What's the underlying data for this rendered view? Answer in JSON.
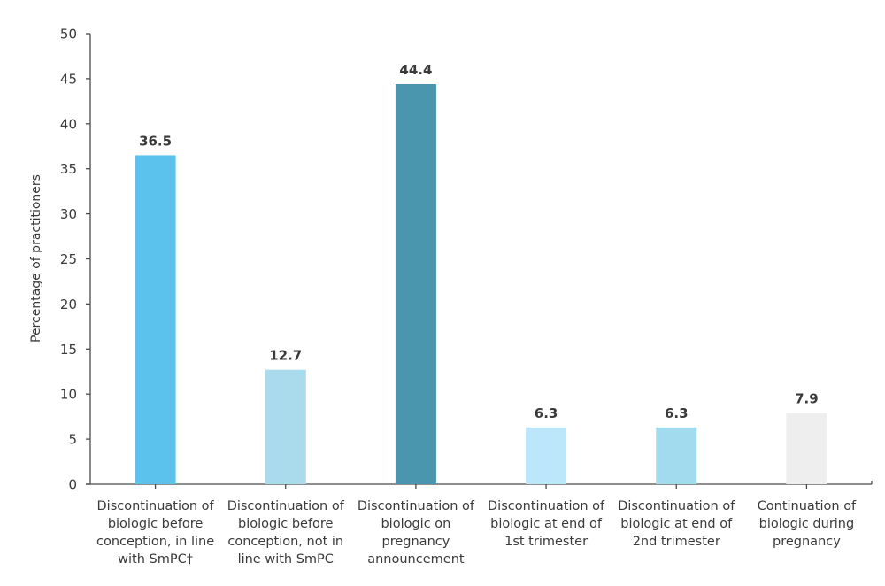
{
  "chart_data": {
    "type": "bar",
    "title": "",
    "xlabel": "",
    "ylabel": "Percentage of practitioners",
    "ylim": [
      0,
      50
    ],
    "yticks": [
      0,
      5,
      10,
      15,
      20,
      25,
      30,
      35,
      40,
      45,
      50
    ],
    "grid": false,
    "legend": "none",
    "categories": [
      [
        "Discontinuation of",
        "biologic before",
        "conception, in line",
        "with SmPC†"
      ],
      [
        "Discontinuation of",
        "biologic before",
        "conception, not in",
        "line with SmPC"
      ],
      [
        "Discontinuation of",
        "biologic on",
        "pregnancy",
        "announcement"
      ],
      [
        "Discontinuation of",
        "biologic at end of",
        "1st trimester"
      ],
      [
        "Discontinuation of",
        "biologic at end of",
        "2nd trimester"
      ],
      [
        "Continuation of",
        "biologic during",
        "pregnancy"
      ]
    ],
    "values": [
      36.5,
      12.7,
      44.4,
      6.3,
      6.3,
      7.9
    ],
    "data_labels": [
      "36.5",
      "12.7",
      "44.4",
      "6.3",
      "6.3",
      "7.9"
    ],
    "colors": [
      "#5BC2ED",
      "#A9DBEC",
      "#4A96AF",
      "#BCE6F9",
      "#A2DBED",
      "#EEEEEE"
    ]
  }
}
